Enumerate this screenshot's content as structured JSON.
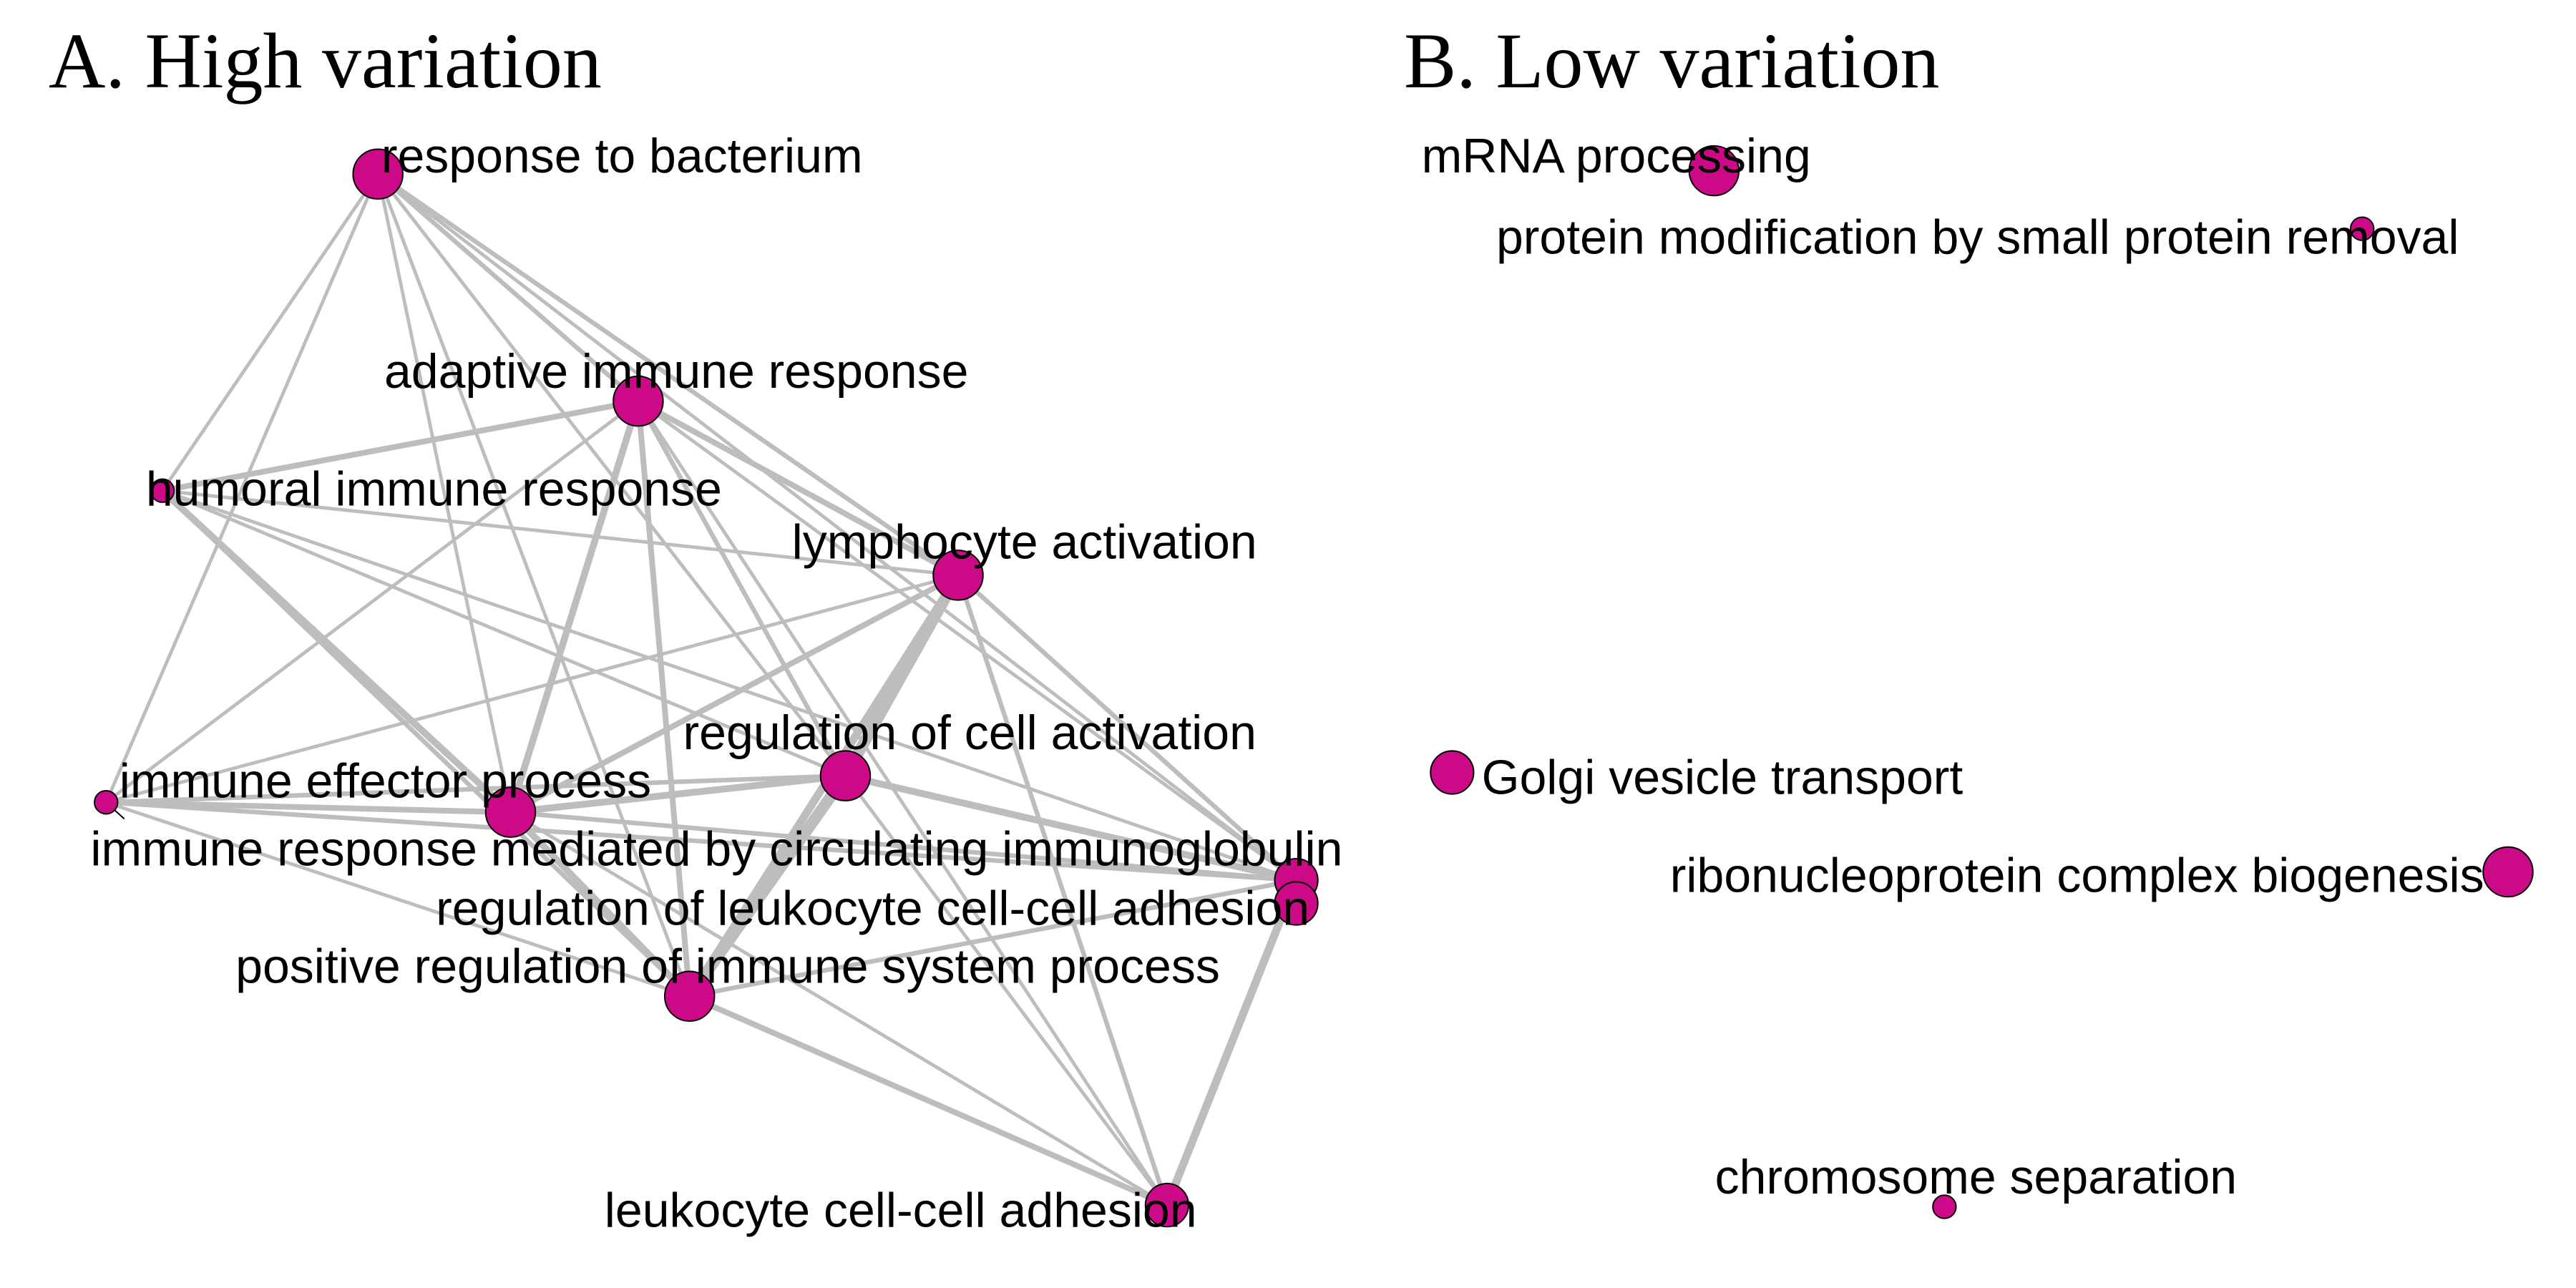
{
  "colors": {
    "node": "#cc0a87",
    "edge": "#bdbdbd",
    "node_stroke": "#000000"
  },
  "panels": [
    {
      "title": "A. High variation",
      "nodes": [
        {
          "id": "rb",
          "label": "response to bacterium",
          "size": 3
        },
        {
          "id": "air",
          "label": "adaptive immune response",
          "size": 3
        },
        {
          "id": "hir",
          "label": "humoral immune response",
          "size": 1
        },
        {
          "id": "la",
          "label": "lymphocyte activation",
          "size": 3
        },
        {
          "id": "rca",
          "label": "regulation of cell activation",
          "size": 3
        },
        {
          "id": "iep",
          "label": "immune effector process",
          "size": 1
        },
        {
          "id": "ep",
          "label": "immune effector process",
          "size": 3
        },
        {
          "id": "irm",
          "label": "immune response mediated by circulating immunoglobulin",
          "size": 2
        },
        {
          "id": "rlc",
          "label": "regulation of leukocyte cell-cell adhesion",
          "size": 2
        },
        {
          "id": "pri",
          "label": "positive regulation of immune system process",
          "size": 3
        },
        {
          "id": "lca",
          "label": "leukocyte cell-cell adhesion",
          "size": 2
        }
      ]
    },
    {
      "title": "B. Low variation",
      "nodes": [
        {
          "id": "mrna",
          "label": "mRNA processing",
          "size": 3
        },
        {
          "id": "pmod",
          "label": "protein modification by small protein removal",
          "size": 1
        },
        {
          "id": "golgi",
          "label": "Golgi vesicle transport",
          "size": 2
        },
        {
          "id": "ribo",
          "label": "ribonucleoprotein complex biogenesis",
          "size": 3
        },
        {
          "id": "chrom",
          "label": "chromosome separation",
          "size": 1
        }
      ]
    }
  ]
}
